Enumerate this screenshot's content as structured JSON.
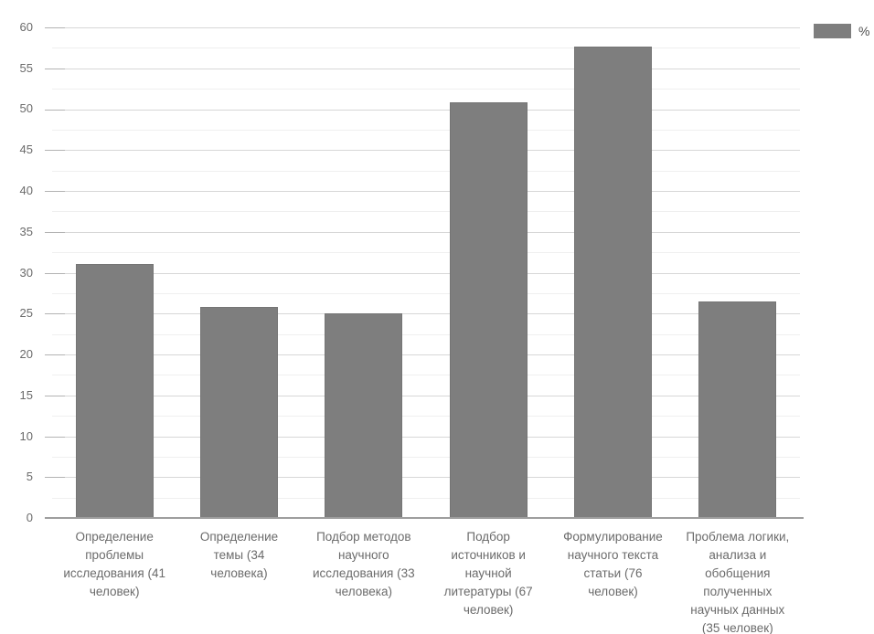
{
  "chart_data": {
    "type": "bar",
    "title": "",
    "xlabel": "",
    "ylabel": "",
    "ylim": [
      0,
      60
    ],
    "ytick_step": 5,
    "yticks": [
      0,
      5,
      10,
      15,
      20,
      25,
      30,
      35,
      40,
      45,
      50,
      55,
      60
    ],
    "minor_tick_step": 2.5,
    "grid": "major+minor horizontal",
    "legend": {
      "label": "%",
      "position": "top-right",
      "swatch_color": "#7e7e7e"
    },
    "bar_color": "#7e7e7e",
    "categories": [
      "Определение\nпроблемы\nисследования (41\nчеловек)",
      "Определение\nтемы (34\nчеловека)",
      "Подбор методов\nнаучного\nисследования (33\nчеловека)",
      "Подбор\nисточников и\nнаучной\nлитературы (67\nчеловек)",
      "Формулирование\nнаучного текста\nстатьи (76\nчеловек)",
      "Проблема логики,\nанализа и\nобобщения\nполученных\nнаучных данных\n(35 человек)"
    ],
    "values": [
      31.1,
      25.8,
      25.0,
      50.8,
      57.6,
      26.5
    ],
    "series": [
      {
        "name": "%",
        "values": [
          31.1,
          25.8,
          25.0,
          50.8,
          57.6,
          26.5
        ]
      }
    ]
  },
  "colors": {
    "bar": "#7e7e7e",
    "major_gridline": "#d7d7d7",
    "minor_gridline": "#efefef",
    "axis_line": "#9e9e9e",
    "tick_text": "#6b6b6b",
    "background": "#ffffff"
  }
}
